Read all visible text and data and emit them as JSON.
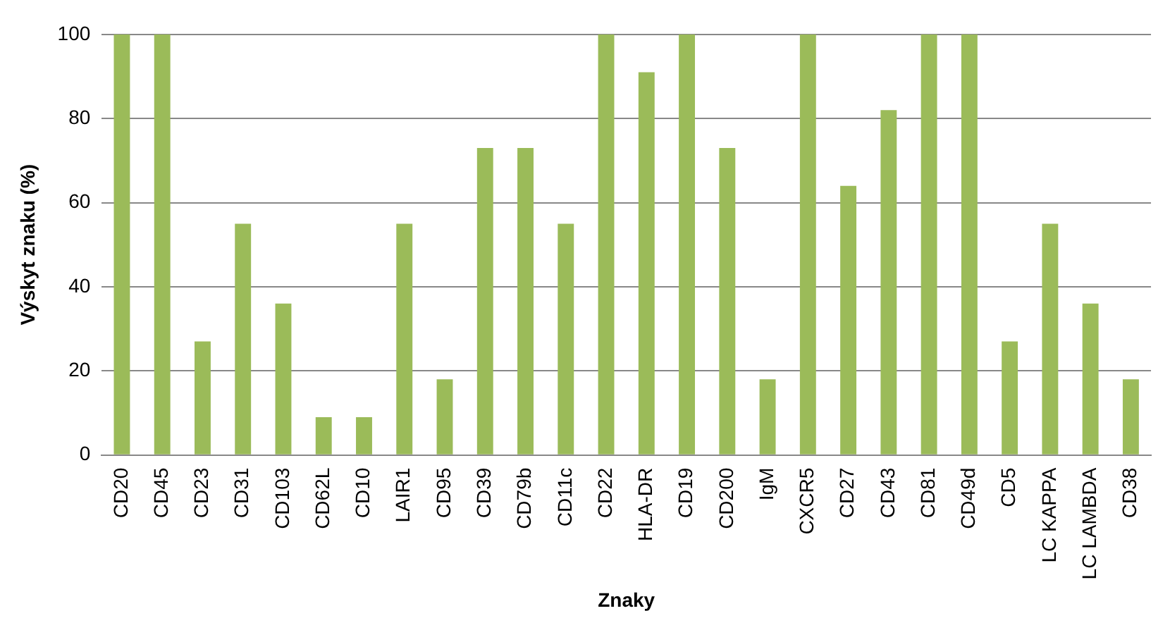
{
  "chart_data": {
    "type": "bar",
    "xlabel": "Znaky",
    "ylabel": "Výskyt znaku (%)",
    "categories": [
      "CD20",
      "CD45",
      "CD23",
      "CD31",
      "CD103",
      "CD62L",
      "CD10",
      "LAIR1",
      "CD95",
      "CD39",
      "CD79b",
      "CD11c",
      "CD22",
      "HLA-DR",
      "CD19",
      "CD200",
      "IgM",
      "CXCR5",
      "CD27",
      "CD43",
      "CD81",
      "CD49d",
      "CD5",
      "LC KAPPA",
      "LC LAMBDA",
      "CD38"
    ],
    "values": [
      100,
      100,
      27,
      55,
      36,
      9,
      9,
      55,
      18,
      73,
      73,
      55,
      100,
      91,
      100,
      73,
      18,
      100,
      64,
      82,
      100,
      100,
      27,
      55,
      36,
      18
    ],
    "color": "#9bbb59",
    "ylim": [
      0,
      100
    ],
    "yticks": [
      0,
      20,
      40,
      60,
      80,
      100
    ],
    "grid": "y",
    "legend": false
  }
}
